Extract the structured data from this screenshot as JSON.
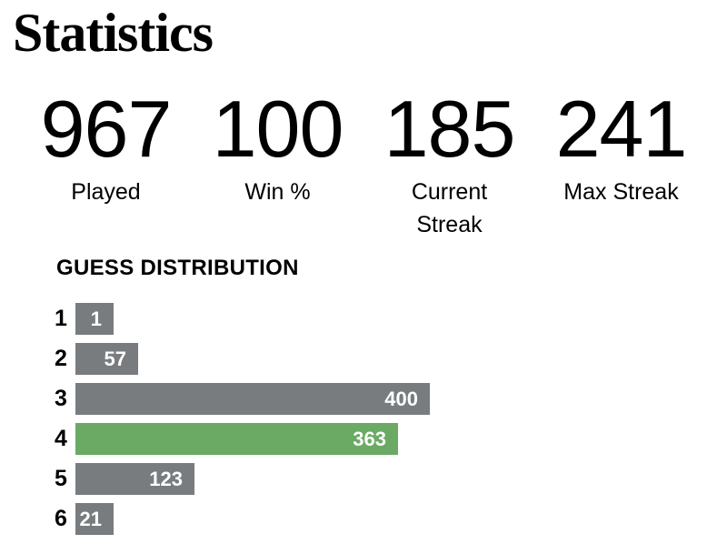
{
  "title": "Statistics",
  "stats": {
    "items": [
      {
        "value": "967",
        "label": "Played"
      },
      {
        "value": "100",
        "label": "Win %"
      },
      {
        "value": "185",
        "label": "Current\nStreak"
      },
      {
        "value": "241",
        "label": "Max Streak"
      }
    ]
  },
  "chart_data": {
    "type": "bar",
    "orientation": "horizontal",
    "title": "GUESS DISTRIBUTION",
    "xlabel": "",
    "ylabel": "",
    "categories": [
      "1",
      "2",
      "3",
      "4",
      "5",
      "6"
    ],
    "values": [
      1,
      57,
      400,
      363,
      123,
      21
    ],
    "highlight_index": 3,
    "xlim": [
      0,
      400
    ],
    "grid": false,
    "legend": "none",
    "value_labels": "inside-right"
  },
  "colors": {
    "background": "#ffffff",
    "text": "#000000",
    "bar_default": "#787c7e",
    "bar_highlight": "#6aaa64",
    "bar_value_text": "#ffffff"
  }
}
